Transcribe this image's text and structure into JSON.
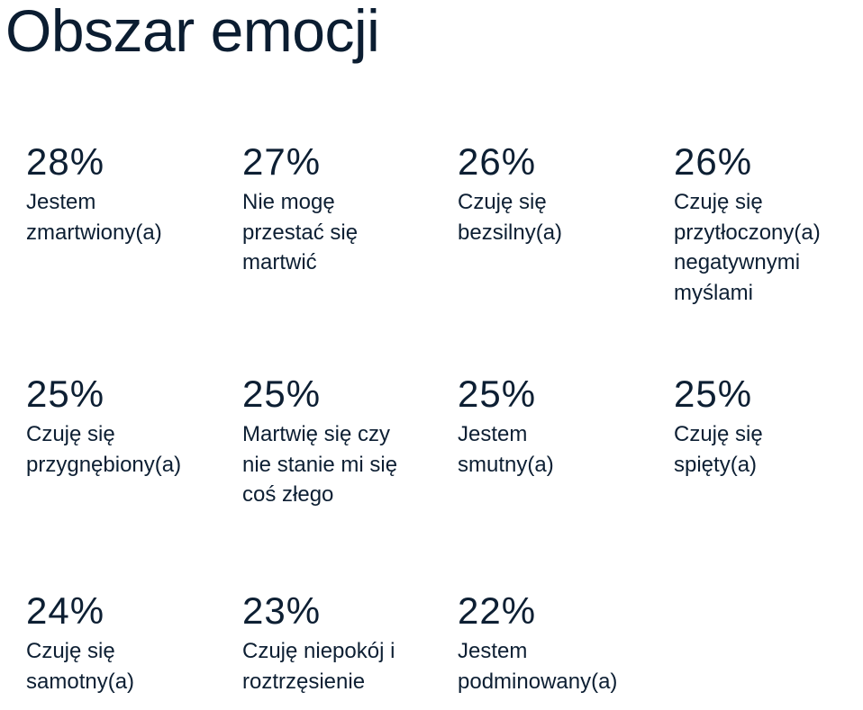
{
  "title": "Obszar emocji",
  "stats": [
    {
      "value": "28%",
      "lines": [
        "Jestem",
        "zmartwiony(a)"
      ]
    },
    {
      "value": "27%",
      "lines": [
        "Nie mogę",
        "przestać się",
        "martwić"
      ]
    },
    {
      "value": "26%",
      "lines": [
        "Czuję się",
        "bezsilny(a)"
      ]
    },
    {
      "value": "26%",
      "lines": [
        "Czuję się",
        "przytłoczony(a)",
        "negatywnymi",
        "myślami"
      ]
    },
    {
      "value": "25%",
      "lines": [
        "Czuję się",
        "przygnębiony(a)"
      ]
    },
    {
      "value": "25%",
      "lines": [
        "Martwię się czy",
        "nie stanie mi się",
        "coś złego"
      ]
    },
    {
      "value": "25%",
      "lines": [
        "Jestem",
        "smutny(a)"
      ]
    },
    {
      "value": "25%",
      "lines": [
        "Czuję się",
        "spięty(a)"
      ]
    },
    {
      "value": "24%",
      "lines": [
        "Czuję się",
        "samotny(a)"
      ]
    },
    {
      "value": "23%",
      "lines": [
        "Czuję niepokój i",
        "roztrzęsienie"
      ]
    },
    {
      "value": "22%",
      "lines": [
        "Jestem",
        "podminowany(a)"
      ]
    }
  ]
}
